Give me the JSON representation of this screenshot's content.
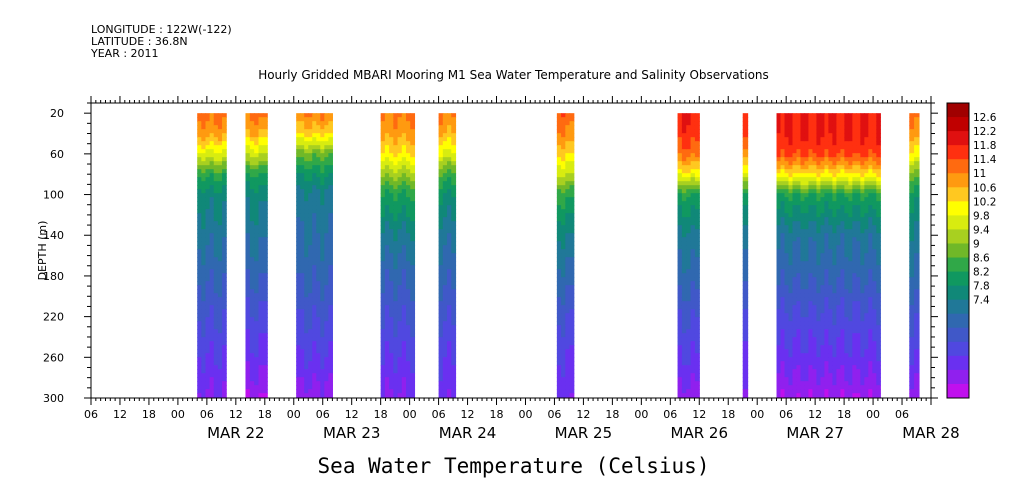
{
  "meta": {
    "longitude": "LONGITUDE : 122W(-122)",
    "latitude": "LATITUDE : 36.8N",
    "year": "YEAR : 2011"
  },
  "chart_data": {
    "type": "heatmap",
    "title": "Hourly Gridded MBARI Mooring M1 Sea Water Temperature and Salinity Observations",
    "bottom_title": "Sea Water Temperature (Celsius)",
    "ylabel": "DEPTH (m)",
    "ylim": [
      300,
      10
    ],
    "y_ticks": [
      20,
      60,
      100,
      140,
      180,
      220,
      260,
      300
    ],
    "x_range_hours": [
      -18,
      156
    ],
    "x_hour_ticks": [
      "00",
      "06",
      "12",
      "18"
    ],
    "days": [
      "MAR 22",
      "MAR 23",
      "MAR 24",
      "MAR 25",
      "MAR 26",
      "MAR 27",
      "MAR 28"
    ],
    "colorbar": {
      "levels": [
        "12.6",
        "12.2",
        "11.8",
        "11.4",
        "11",
        "10.6",
        "10.2",
        "9.8",
        "9.4",
        "9",
        "8.6",
        "8.2",
        "7.8",
        "7.4"
      ],
      "colors": [
        "#a00000",
        "#c00000",
        "#e01010",
        "#ff3010",
        "#ff6a10",
        "#ff9a10",
        "#ffc820",
        "#ffff00",
        "#d8ec10",
        "#a8d020",
        "#70b828",
        "#30a848",
        "#109860",
        "#108878",
        "#207898",
        "#3068b0",
        "#4058c8",
        "#5048e0",
        "#6a30f0",
        "#9020ee",
        "#c010ee"
      ]
    },
    "blocks": [
      {
        "start": 4,
        "end": 10,
        "surf_temp": 11.6,
        "depths": [
          20,
          40,
          60,
          80,
          100,
          140,
          180,
          220,
          260,
          300
        ],
        "temps": [
          11.6,
          11.3,
          10.6,
          9.7,
          9.2,
          8.9,
          8.6,
          8.3,
          8.0,
          7.7
        ]
      },
      {
        "start": 14,
        "end": 18.5,
        "surf_temp": 11.6,
        "depths": [
          20,
          40,
          60,
          80,
          100,
          140,
          180,
          220,
          260,
          300
        ],
        "temps": [
          11.6,
          11.2,
          10.5,
          9.6,
          9.2,
          8.9,
          8.6,
          8.2,
          7.9,
          7.5
        ]
      },
      {
        "start": 24.5,
        "end": 32,
        "surf_temp": 11.5,
        "depths": [
          20,
          40,
          60,
          80,
          100,
          140,
          180,
          220,
          260,
          300
        ],
        "temps": [
          11.5,
          11.0,
          10.0,
          9.4,
          9.0,
          8.8,
          8.6,
          8.3,
          8.0,
          7.6
        ]
      },
      {
        "start": 42,
        "end": 49,
        "surf_temp": 11.5,
        "depths": [
          20,
          40,
          60,
          80,
          100,
          140,
          180,
          220,
          260,
          300
        ],
        "temps": [
          11.5,
          11.3,
          10.9,
          10.2,
          9.6,
          9.0,
          8.6,
          8.3,
          8.0,
          7.7
        ]
      },
      {
        "start": 54,
        "end": 57.5,
        "surf_temp": 11.5,
        "depths": [
          20,
          40,
          60,
          80,
          100,
          140,
          180,
          220,
          260,
          300
        ],
        "temps": [
          11.5,
          11.2,
          10.6,
          9.8,
          9.3,
          8.9,
          8.6,
          8.3,
          8.0,
          7.8
        ]
      },
      {
        "start": 78.5,
        "end": 82,
        "surf_temp": 11.7,
        "depths": [
          20,
          40,
          60,
          80,
          100,
          140,
          180,
          220,
          260,
          300
        ],
        "temps": [
          11.7,
          11.4,
          11.0,
          10.4,
          9.7,
          9.1,
          8.7,
          8.3,
          8.0,
          7.8
        ]
      },
      {
        "start": 103.5,
        "end": 108,
        "surf_temp": 12.0,
        "depths": [
          20,
          40,
          60,
          80,
          100,
          140,
          180,
          220,
          260,
          300
        ],
        "temps": [
          12.0,
          11.9,
          11.6,
          10.8,
          9.6,
          9.0,
          8.7,
          8.3,
          8.0,
          7.6
        ]
      },
      {
        "start": 117,
        "end": 118,
        "surf_temp": 12.0,
        "depths": [
          20,
          40,
          60,
          80,
          100,
          140,
          180,
          220,
          260,
          300
        ],
        "temps": [
          12.0,
          11.9,
          11.5,
          10.7,
          9.6,
          9.0,
          8.7,
          8.3,
          8.0,
          7.8
        ]
      },
      {
        "start": 124,
        "end": 145.5,
        "surf_temp": 12.0,
        "depths": [
          20,
          40,
          60,
          80,
          100,
          140,
          180,
          220,
          260,
          300
        ],
        "temps": [
          12.0,
          12.0,
          11.8,
          10.9,
          9.6,
          8.9,
          8.6,
          8.2,
          7.9,
          7.5
        ]
      },
      {
        "start": 151.5,
        "end": 153.5,
        "surf_temp": 11.6,
        "depths": [
          20,
          40,
          60,
          80,
          100,
          140,
          180,
          220,
          260,
          300
        ],
        "temps": [
          11.6,
          11.3,
          10.8,
          10.0,
          9.4,
          9.0,
          8.7,
          8.3,
          8.0,
          7.5
        ]
      }
    ]
  }
}
